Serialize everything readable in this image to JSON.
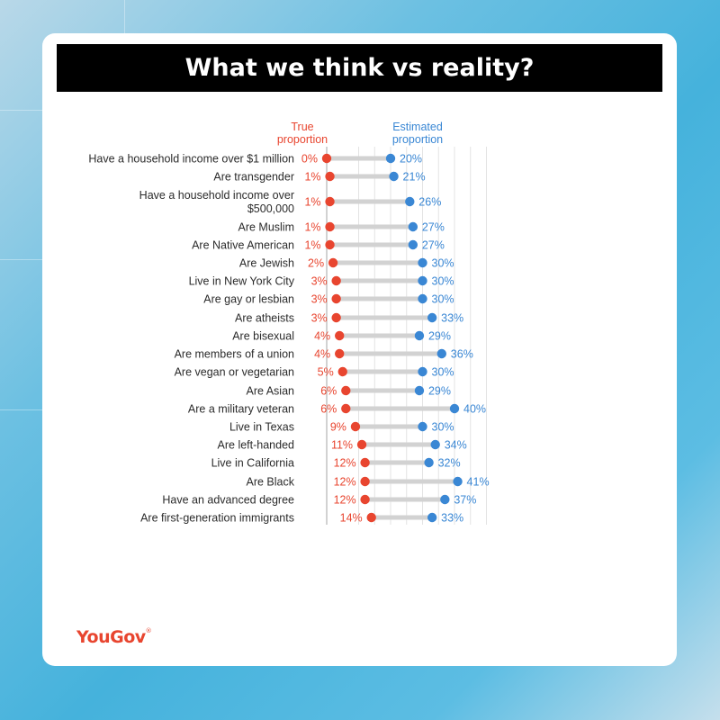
{
  "title": "What we think vs reality?",
  "logo": "YouGov",
  "logo_mark": "®",
  "colors": {
    "true": "#e8452f",
    "estimated": "#3a87d4",
    "connector": "#d2d2d2",
    "grid": "#e3e3e3"
  },
  "chart_data": {
    "type": "dumbbell",
    "title": "What we think vs reality?",
    "xlim": [
      0,
      50
    ],
    "legend": [
      {
        "series": "true",
        "lines": [
          "True",
          "proportion"
        ]
      },
      {
        "series": "estimated",
        "lines": [
          "Estimated",
          "proportion"
        ]
      }
    ],
    "rows": [
      {
        "label": [
          "Have a household income over $1 million"
        ],
        "true": 0,
        "estimated": 20
      },
      {
        "label": [
          "Are transgender"
        ],
        "true": 1,
        "estimated": 21
      },
      {
        "label": [
          "Have a household income over",
          "$500,000"
        ],
        "true": 1,
        "estimated": 26
      },
      {
        "label": [
          "Are Muslim"
        ],
        "true": 1,
        "estimated": 27
      },
      {
        "label": [
          "Are Native American"
        ],
        "true": 1,
        "estimated": 27
      },
      {
        "label": [
          "Are Jewish"
        ],
        "true": 2,
        "estimated": 30
      },
      {
        "label": [
          "Live in New York City"
        ],
        "true": 3,
        "estimated": 30
      },
      {
        "label": [
          "Are gay or lesbian"
        ],
        "true": 3,
        "estimated": 30
      },
      {
        "label": [
          "Are atheists"
        ],
        "true": 3,
        "estimated": 33
      },
      {
        "label": [
          "Are bisexual"
        ],
        "true": 4,
        "estimated": 29
      },
      {
        "label": [
          "Are members of a union"
        ],
        "true": 4,
        "estimated": 36
      },
      {
        "label": [
          "Are vegan or vegetarian"
        ],
        "true": 5,
        "estimated": 30
      },
      {
        "label": [
          "Are Asian"
        ],
        "true": 6,
        "estimated": 29
      },
      {
        "label": [
          "Are a military veteran"
        ],
        "true": 6,
        "estimated": 40
      },
      {
        "label": [
          "Live in Texas"
        ],
        "true": 9,
        "estimated": 30
      },
      {
        "label": [
          "Are left-handed"
        ],
        "true": 11,
        "estimated": 34
      },
      {
        "label": [
          "Live in California"
        ],
        "true": 12,
        "estimated": 32
      },
      {
        "label": [
          "Are Black"
        ],
        "true": 12,
        "estimated": 41
      },
      {
        "label": [
          "Have an advanced degree"
        ],
        "true": 12,
        "estimated": 37
      },
      {
        "label": [
          "Are first-generation immigrants"
        ],
        "true": 14,
        "estimated": 33
      }
    ]
  }
}
